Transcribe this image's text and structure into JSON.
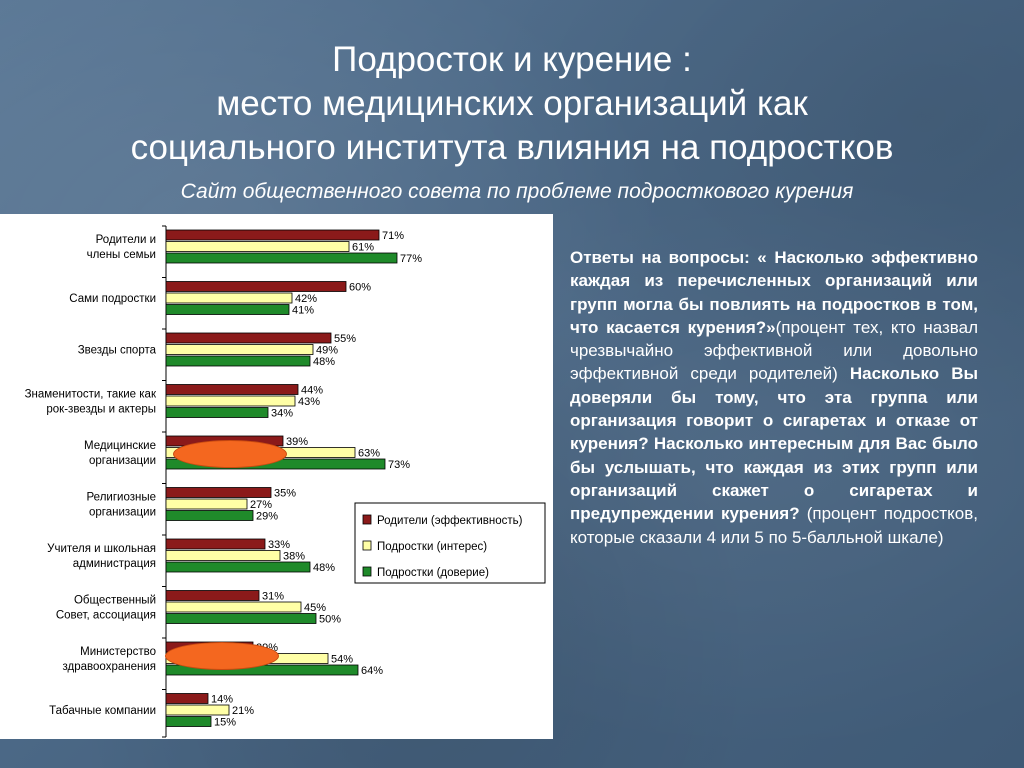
{
  "title": {
    "line1": "Подросток  и курение :",
    "line2": "место медицинских организаций как",
    "line3": "социального института влияния на подростков"
  },
  "subtitle": "Сайт общественного совета по проблеме подросткового курения",
  "chart_data": {
    "type": "bar",
    "orientation": "horizontal",
    "categories": [
      [
        "Родители и",
        "члены семьи"
      ],
      [
        "Сами подростки"
      ],
      [
        "Звезды спорта"
      ],
      [
        "Знаменитости, такие как",
        "рок-звезды и актеры"
      ],
      [
        "Медицинские",
        "организации"
      ],
      [
        "Религиозные",
        "организации"
      ],
      [
        "Учителя и школьная",
        "администрация"
      ],
      [
        "Общественный",
        "Совет, ассоциация"
      ],
      [
        "Министерство",
        "здравоохранения"
      ],
      [
        "Табачные компании"
      ]
    ],
    "series": [
      {
        "name": "Родители (эффективность)",
        "color": "#8b1a1a",
        "values": [
          71,
          60,
          55,
          44,
          39,
          35,
          33,
          31,
          29,
          14
        ]
      },
      {
        "name": "Подростки (интерес)",
        "color": "#ffffa6",
        "values": [
          61,
          42,
          49,
          43,
          63,
          27,
          38,
          45,
          54,
          21
        ]
      },
      {
        "name": "Подростки (доверие)",
        "color": "#1f8a2a",
        "values": [
          77,
          41,
          48,
          34,
          73,
          29,
          48,
          50,
          64,
          15
        ]
      }
    ],
    "value_suffix": "%",
    "legend_position": "right",
    "highlighted_categories": [
      4,
      8
    ],
    "highlight_color": "#f4671f"
  },
  "text": {
    "q1_intro": "Ответы на вопросы: « ",
    "q1_rest": "Насколько эффективно каждая из перечисленных организаций или групп могла бы повлиять на подростков в том, что касается курения?»",
    "note1": "(процент тех, кто назвал чрезвычайно эффективной или довольно эффективной среди родителей)",
    "q2": "Насколько Вы доверяли бы тому, что эта группа или организация говорит о сигаретах и отказе от курения? Насколько интересным для Вас было бы услышать, что каждая из этих групп или организаций скажет о сигаретах и предупреждении курения?",
    "note2": " (процент подростков, которые сказали 4 или 5 по 5-балльной шкале)"
  }
}
